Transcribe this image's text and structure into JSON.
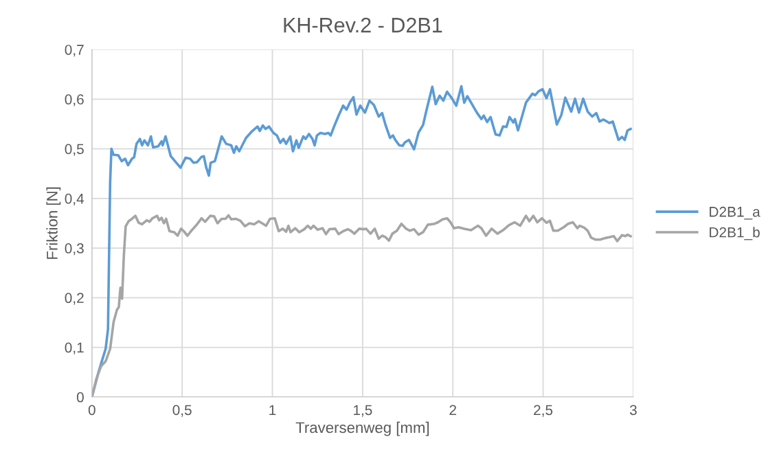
{
  "chart_data": {
    "type": "line",
    "title": "KH-Rev.2 - D2B1",
    "xlabel": "Traversenweg [mm]",
    "ylabel": "Friktion [N]",
    "xlim": [
      0,
      3
    ],
    "xticks": [
      0,
      {
        "value": 0.5,
        "label": "0,5"
      },
      1,
      {
        "value": 1.5,
        "label": "1,5"
      },
      2,
      {
        "value": 2.5,
        "label": "2,5"
      },
      3
    ],
    "ylim": [
      0,
      0.7
    ],
    "yticks": [
      0,
      {
        "value": 0.1,
        "label": "0,1"
      },
      {
        "value": 0.2,
        "label": "0,2"
      },
      {
        "value": 0.3,
        "label": "0,3"
      },
      {
        "value": 0.4,
        "label": "0,4"
      },
      {
        "value": 0.5,
        "label": "0,5"
      },
      {
        "value": 0.6,
        "label": "0,6"
      },
      {
        "value": 0.7,
        "label": "0,7"
      }
    ],
    "grid": true,
    "legend": "right",
    "marker": "none",
    "line_style": "solid",
    "series": [
      {
        "name": "D2B1_a",
        "color": "#5b9bd5",
        "x": [
          0,
          0.038,
          0.076,
          0.089,
          0.095,
          0.101,
          0.108,
          0.12,
          0.146,
          0.165,
          0.184,
          0.2,
          0.222,
          0.234,
          0.247,
          0.266,
          0.278,
          0.291,
          0.31,
          0.327,
          0.339,
          0.367,
          0.386,
          0.392,
          0.408,
          0.437,
          0.449,
          0.491,
          0.519,
          0.544,
          0.563,
          0.582,
          0.608,
          0.62,
          0.633,
          0.648,
          0.658,
          0.681,
          0.719,
          0.744,
          0.772,
          0.787,
          0.8,
          0.816,
          0.833,
          0.854,
          0.886,
          0.918,
          0.93,
          0.947,
          0.962,
          0.981,
          1.006,
          1.025,
          1.044,
          1.061,
          1.076,
          1.099,
          1.114,
          1.133,
          1.146,
          1.171,
          1.184,
          1.203,
          1.222,
          1.234,
          1.247,
          1.266,
          1.291,
          1.31,
          1.323,
          1.342,
          1.367,
          1.392,
          1.411,
          1.43,
          1.449,
          1.466,
          1.487,
          1.513,
          1.538,
          1.563,
          1.589,
          1.608,
          1.627,
          1.652,
          1.668,
          1.681,
          1.703,
          1.722,
          1.734,
          1.757,
          1.785,
          1.81,
          1.835,
          1.854,
          1.886,
          1.905,
          1.927,
          1.947,
          1.968,
          1.994,
          2.019,
          2.047,
          2.063,
          2.08,
          2.101,
          2.133,
          2.158,
          2.171,
          2.19,
          2.209,
          2.237,
          2.259,
          2.278,
          2.297,
          2.314,
          2.335,
          2.344,
          2.361,
          2.405,
          2.441,
          2.456,
          2.475,
          2.497,
          2.519,
          2.538,
          2.576,
          2.601,
          2.623,
          2.656,
          2.677,
          2.699,
          2.722,
          2.747,
          2.772,
          2.795,
          2.813,
          2.835,
          2.867,
          2.886,
          2.918,
          2.937,
          2.952,
          2.968,
          2.985
        ],
        "values": [
          0,
          0.052,
          0.097,
          0.136,
          0.285,
          0.433,
          0.5,
          0.488,
          0.487,
          0.475,
          0.48,
          0.467,
          0.48,
          0.483,
          0.51,
          0.52,
          0.507,
          0.517,
          0.507,
          0.525,
          0.503,
          0.505,
          0.515,
          0.507,
          0.525,
          0.485,
          0.48,
          0.462,
          0.482,
          0.48,
          0.472,
          0.473,
          0.484,
          0.485,
          0.463,
          0.446,
          0.472,
          0.475,
          0.525,
          0.51,
          0.507,
          0.492,
          0.505,
          0.495,
          0.507,
          0.522,
          0.535,
          0.545,
          0.536,
          0.547,
          0.54,
          0.545,
          0.532,
          0.527,
          0.512,
          0.52,
          0.51,
          0.525,
          0.495,
          0.517,
          0.502,
          0.525,
          0.52,
          0.53,
          0.52,
          0.507,
          0.527,
          0.532,
          0.53,
          0.532,
          0.527,
          0.545,
          0.567,
          0.587,
          0.579,
          0.594,
          0.604,
          0.569,
          0.587,
          0.573,
          0.597,
          0.588,
          0.565,
          0.572,
          0.548,
          0.522,
          0.527,
          0.518,
          0.507,
          0.506,
          0.513,
          0.518,
          0.499,
          0.533,
          0.548,
          0.578,
          0.625,
          0.59,
          0.607,
          0.597,
          0.615,
          0.602,
          0.587,
          0.626,
          0.593,
          0.606,
          0.593,
          0.573,
          0.56,
          0.567,
          0.554,
          0.564,
          0.529,
          0.527,
          0.545,
          0.544,
          0.564,
          0.553,
          0.56,
          0.537,
          0.593,
          0.611,
          0.608,
          0.616,
          0.62,
          0.602,
          0.62,
          0.549,
          0.568,
          0.603,
          0.575,
          0.601,
          0.573,
          0.601,
          0.575,
          0.565,
          0.572,
          0.555,
          0.559,
          0.552,
          0.555,
          0.518,
          0.524,
          0.518,
          0.537,
          0.54
        ]
      },
      {
        "name": "D2B1_b",
        "color": "#a5a5a5",
        "x": [
          0,
          0.025,
          0.051,
          0.076,
          0.101,
          0.12,
          0.139,
          0.149,
          0.158,
          0.167,
          0.177,
          0.187,
          0.203,
          0.222,
          0.241,
          0.259,
          0.278,
          0.304,
          0.319,
          0.335,
          0.361,
          0.373,
          0.386,
          0.399,
          0.411,
          0.43,
          0.456,
          0.475,
          0.494,
          0.509,
          0.529,
          0.551,
          0.576,
          0.608,
          0.627,
          0.656,
          0.677,
          0.696,
          0.719,
          0.741,
          0.757,
          0.772,
          0.797,
          0.823,
          0.848,
          0.873,
          0.899,
          0.924,
          0.943,
          0.965,
          0.987,
          1.013,
          1.035,
          1.057,
          1.076,
          1.089,
          1.101,
          1.127,
          1.149,
          1.177,
          1.196,
          1.213,
          1.228,
          1.251,
          1.278,
          1.297,
          1.316,
          1.348,
          1.367,
          1.392,
          1.418,
          1.435,
          1.454,
          1.481,
          1.506,
          1.519,
          1.544,
          1.567,
          1.589,
          1.608,
          1.627,
          1.646,
          1.665,
          1.69,
          1.715,
          1.741,
          1.762,
          1.785,
          1.81,
          1.835,
          1.861,
          1.899,
          1.918,
          1.943,
          1.968,
          1.987,
          2.006,
          2.032,
          2.063,
          2.101,
          2.139,
          2.158,
          2.184,
          2.215,
          2.247,
          2.278,
          2.31,
          2.342,
          2.373,
          2.405,
          2.424,
          2.446,
          2.468,
          2.494,
          2.519,
          2.538,
          2.557,
          2.582,
          2.614,
          2.639,
          2.665,
          2.69,
          2.703,
          2.728,
          2.747,
          2.766,
          2.791,
          2.816,
          2.842,
          2.867,
          2.892,
          2.911,
          2.937,
          2.956,
          2.968,
          2.985
        ],
        "values": [
          0,
          0.037,
          0.062,
          0.072,
          0.097,
          0.151,
          0.176,
          0.181,
          0.22,
          0.198,
          0.285,
          0.344,
          0.354,
          0.359,
          0.365,
          0.351,
          0.348,
          0.356,
          0.353,
          0.36,
          0.365,
          0.356,
          0.361,
          0.35,
          0.359,
          0.334,
          0.332,
          0.325,
          0.339,
          0.334,
          0.325,
          0.335,
          0.345,
          0.36,
          0.353,
          0.365,
          0.364,
          0.35,
          0.359,
          0.359,
          0.366,
          0.358,
          0.359,
          0.355,
          0.344,
          0.35,
          0.348,
          0.354,
          0.35,
          0.345,
          0.359,
          0.36,
          0.334,
          0.339,
          0.333,
          0.345,
          0.332,
          0.34,
          0.332,
          0.338,
          0.345,
          0.339,
          0.345,
          0.337,
          0.34,
          0.328,
          0.338,
          0.339,
          0.328,
          0.334,
          0.338,
          0.335,
          0.329,
          0.339,
          0.338,
          0.339,
          0.329,
          0.339,
          0.319,
          0.325,
          0.322,
          0.315,
          0.329,
          0.335,
          0.349,
          0.339,
          0.335,
          0.338,
          0.327,
          0.332,
          0.347,
          0.349,
          0.352,
          0.358,
          0.36,
          0.352,
          0.34,
          0.342,
          0.339,
          0.336,
          0.345,
          0.34,
          0.325,
          0.339,
          0.329,
          0.336,
          0.346,
          0.352,
          0.345,
          0.365,
          0.354,
          0.365,
          0.352,
          0.36,
          0.351,
          0.355,
          0.335,
          0.335,
          0.342,
          0.349,
          0.352,
          0.34,
          0.345,
          0.341,
          0.335,
          0.321,
          0.317,
          0.317,
          0.32,
          0.322,
          0.324,
          0.314,
          0.326,
          0.324,
          0.327,
          0.324
        ]
      }
    ]
  }
}
